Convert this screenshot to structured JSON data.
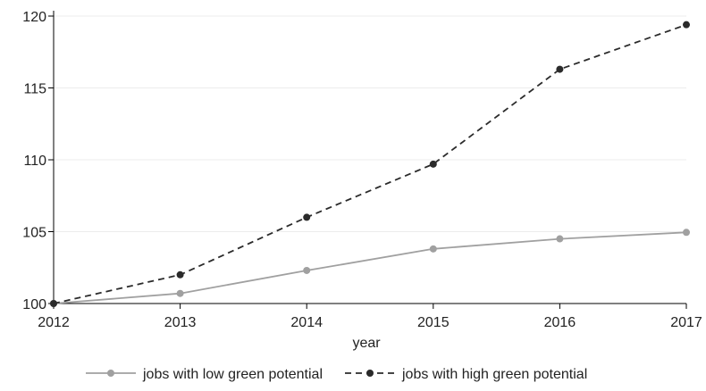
{
  "chart_data": {
    "type": "line",
    "title": "",
    "xlabel": "year",
    "ylabel": "",
    "x": [
      2012,
      2013,
      2014,
      2015,
      2016,
      2017
    ],
    "xlim": [
      2012,
      2017
    ],
    "ylim": [
      100,
      120
    ],
    "yticks": [
      100,
      105,
      110,
      115,
      120
    ],
    "grid": true,
    "legend_position": "bottom",
    "series": [
      {
        "name": "jobs with low green potential",
        "values": [
          100.0,
          100.7,
          102.3,
          103.8,
          104.5,
          104.95
        ],
        "color": "#a0a0a0",
        "line_style": "solid"
      },
      {
        "name": "jobs with high green potential",
        "values": [
          100.0,
          102.0,
          106.0,
          109.7,
          116.3,
          119.4
        ],
        "color": "#2b2b2b",
        "line_style": "dashed"
      }
    ]
  }
}
